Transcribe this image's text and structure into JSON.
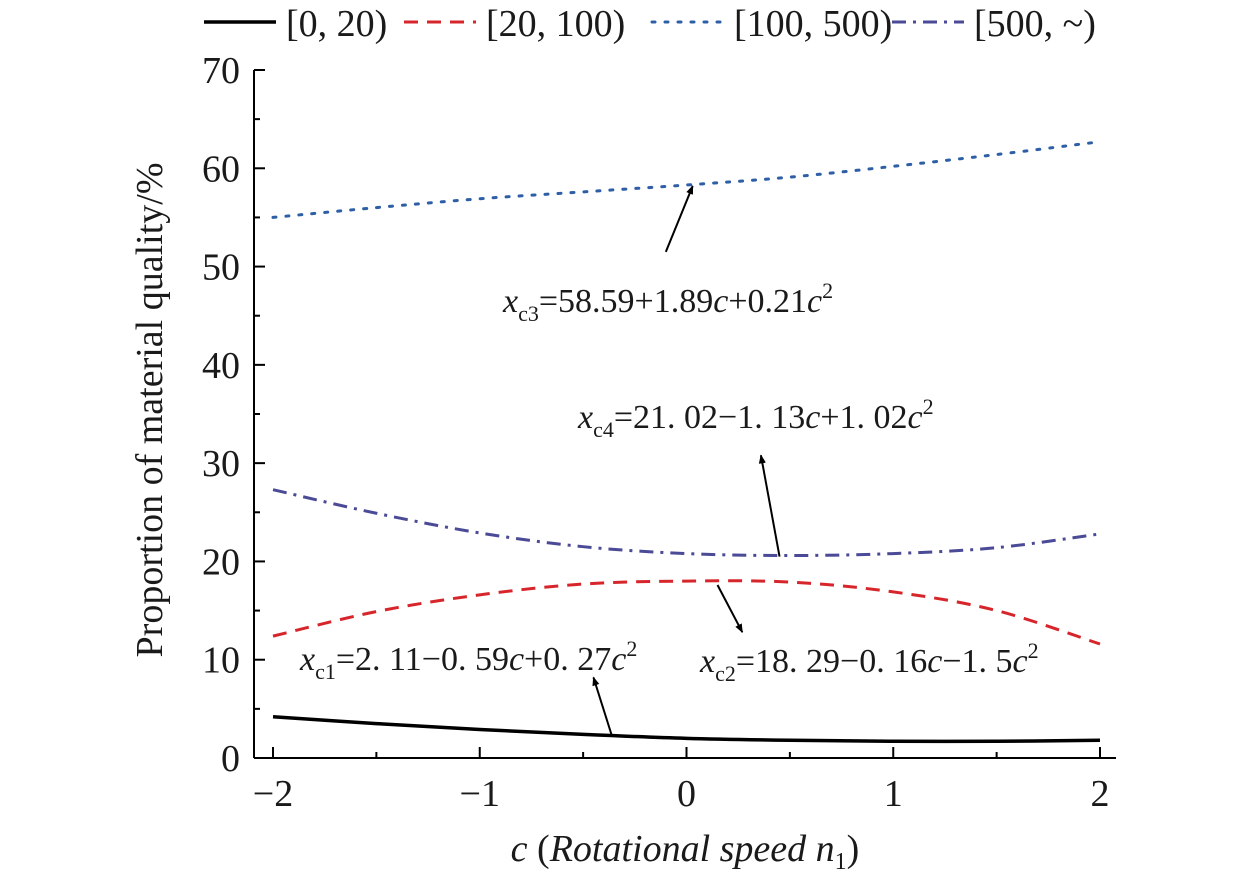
{
  "chart_data": {
    "type": "line",
    "xlabel": "c (Rotational speed n1)",
    "xlabel_parts": {
      "var": "c",
      "open": " (",
      "text": "Rotational speed ",
      "n": "n",
      "sub": "1",
      "close": ")"
    },
    "ylabel": "Proportion of material quality/%",
    "xlim": [
      -2,
      2
    ],
    "ylim": [
      0,
      70
    ],
    "xticks": [
      "−2",
      "−1",
      "0",
      "1",
      "2"
    ],
    "xtick_values": [
      -2,
      -1,
      0,
      1,
      2
    ],
    "yticks": [
      "0",
      "10",
      "20",
      "30",
      "40",
      "50",
      "60",
      "70"
    ],
    "ytick_values": [
      0,
      10,
      20,
      30,
      40,
      50,
      60,
      70
    ],
    "grid": false,
    "legend_position": "top",
    "x": [
      -2,
      -1.5,
      -1,
      -0.5,
      0,
      0.5,
      1,
      1.5,
      2
    ],
    "series": [
      {
        "name": "[0, 20)",
        "style": "solid",
        "color": "#000000",
        "values": [
          4.2,
          3.5,
          2.9,
          2.4,
          2.0,
          1.8,
          1.7,
          1.7,
          1.8
        ]
      },
      {
        "name": "[20, 100)",
        "style": "dashed",
        "color": "#d7262b",
        "values": [
          12.4,
          14.9,
          16.6,
          17.7,
          18.0,
          17.9,
          16.9,
          15.0,
          11.6
        ]
      },
      {
        "name": "[100, 500)",
        "style": "dotted",
        "color": "#2e5fa6",
        "values": [
          55.0,
          56.0,
          56.9,
          57.6,
          58.3,
          59.1,
          60.2,
          61.4,
          62.7
        ]
      },
      {
        "name": "[500, ~)",
        "style": "dashdot",
        "color": "#4b4a96",
        "values": [
          27.3,
          24.9,
          22.9,
          21.5,
          20.8,
          20.6,
          20.8,
          21.4,
          22.8
        ]
      }
    ],
    "annotations": [
      {
        "id": "xc3",
        "parts": [
          {
            "t": "x",
            "s": "italic"
          },
          {
            "t": "c3",
            "s": "sub"
          },
          {
            "t": "=58.59+1.89",
            "s": "normal"
          },
          {
            "t": "c",
            "s": "italic"
          },
          {
            "t": "+0.21",
            "s": "normal"
          },
          {
            "t": "c",
            "s": "italic"
          },
          {
            "t": "2",
            "s": "sup"
          }
        ],
        "arrow_from": [
          -0.1,
          51.5
        ],
        "arrow_to": [
          0.03,
          58.2
        ]
      },
      {
        "id": "xc4",
        "parts": [
          {
            "t": "x",
            "s": "italic"
          },
          {
            "t": "c4",
            "s": "sub"
          },
          {
            "t": "=21. 02−1. 13",
            "s": "normal"
          },
          {
            "t": "c",
            "s": "italic"
          },
          {
            "t": "+1. 02",
            "s": "normal"
          },
          {
            "t": "c",
            "s": "italic"
          },
          {
            "t": "2",
            "s": "sup"
          }
        ],
        "arrow_from": [
          0.45,
          20.5
        ],
        "arrow_to": [
          0.36,
          30.8
        ]
      },
      {
        "id": "xc1",
        "parts": [
          {
            "t": "x",
            "s": "italic"
          },
          {
            "t": "c1",
            "s": "sub"
          },
          {
            "t": "=2. 11−0. 59",
            "s": "normal"
          },
          {
            "t": "c",
            "s": "italic"
          },
          {
            "t": "+0. 27",
            "s": "normal"
          },
          {
            "t": "c",
            "s": "italic"
          },
          {
            "t": "2",
            "s": "sup"
          }
        ],
        "arrow_from": [
          -0.36,
          2.2
        ],
        "arrow_to": [
          -0.45,
          8.2
        ]
      },
      {
        "id": "xc2",
        "parts": [
          {
            "t": "x",
            "s": "italic"
          },
          {
            "t": "c2",
            "s": "sub"
          },
          {
            "t": "=18. 29−0. 16",
            "s": "normal"
          },
          {
            "t": "c",
            "s": "italic"
          },
          {
            "t": "−1. 5",
            "s": "normal"
          },
          {
            "t": "c",
            "s": "italic"
          },
          {
            "t": "2",
            "s": "sup"
          }
        ],
        "arrow_from": [
          0.15,
          17.6
        ],
        "arrow_to": [
          0.27,
          12.8
        ]
      }
    ]
  }
}
